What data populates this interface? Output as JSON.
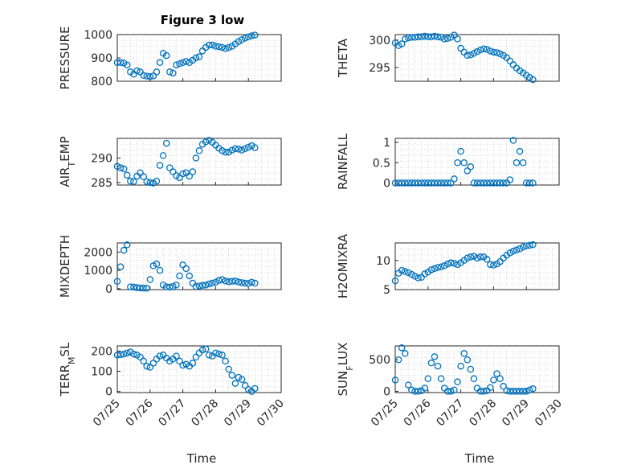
{
  "figure": {
    "title": "Figure 3 low",
    "marker_color": "#0072BD",
    "grid": "minor dotted",
    "x_axis_label": "Time"
  },
  "chart_data": [
    {
      "type": "scatter",
      "title": "Figure 3 low",
      "ylabel": "PRESSURE",
      "xlabel": "",
      "xlim": [
        "07/25",
        "07/30"
      ],
      "xticks": [
        "07/25",
        "07/26",
        "07/27",
        "07/28",
        "07/29",
        "07/30"
      ],
      "ylim": [
        800,
        1000
      ],
      "yticks": [
        "800",
        "900",
        "1000"
      ],
      "x": [
        0.0,
        0.1,
        0.2,
        0.3,
        0.4,
        0.5,
        0.6,
        0.7,
        0.8,
        0.9,
        1.0,
        1.1,
        1.2,
        1.3,
        1.4,
        1.5,
        1.6,
        1.7,
        1.8,
        1.9,
        2.0,
        2.1,
        2.2,
        2.3,
        2.4,
        2.5,
        2.6,
        2.7,
        2.8,
        2.9,
        3.0,
        3.1,
        3.2,
        3.3,
        3.4,
        3.5,
        3.6,
        3.7,
        3.8,
        3.9,
        4.0,
        4.1,
        4.2
      ],
      "y": [
        880,
        880,
        878,
        870,
        840,
        830,
        845,
        840,
        825,
        822,
        820,
        823,
        840,
        880,
        920,
        910,
        840,
        835,
        870,
        875,
        880,
        885,
        880,
        890,
        900,
        905,
        930,
        945,
        955,
        955,
        950,
        948,
        945,
        940,
        945,
        950,
        960,
        970,
        978,
        985,
        990,
        995,
        998
      ]
    },
    {
      "type": "scatter",
      "ylabel": "THETA",
      "xlabel": "",
      "xlim": [
        "07/25",
        "07/30"
      ],
      "xticks": [
        "07/25",
        "07/26",
        "07/27",
        "07/28",
        "07/29",
        "07/30"
      ],
      "ylim": [
        292.5,
        301
      ],
      "yticks": [
        "295",
        "300"
      ],
      "x": [
        0.0,
        0.1,
        0.2,
        0.3,
        0.4,
        0.5,
        0.6,
        0.7,
        0.8,
        0.9,
        1.0,
        1.1,
        1.2,
        1.3,
        1.4,
        1.5,
        1.6,
        1.7,
        1.8,
        1.9,
        2.0,
        2.1,
        2.2,
        2.3,
        2.4,
        2.5,
        2.6,
        2.7,
        2.8,
        2.9,
        3.0,
        3.1,
        3.2,
        3.3,
        3.4,
        3.5,
        3.6,
        3.7,
        3.8,
        3.9,
        4.0,
        4.1,
        4.2
      ],
      "y": [
        299.5,
        299,
        299.3,
        300.2,
        300.4,
        300.5,
        300.5,
        300.6,
        300.6,
        300.7,
        300.6,
        300.6,
        300.7,
        300.6,
        300.5,
        300.2,
        300.3,
        300.5,
        300.9,
        300.2,
        298.5,
        297.8,
        297.2,
        297.3,
        297.6,
        297.9,
        298.2,
        298.4,
        298.3,
        298.0,
        297.8,
        297.7,
        297.5,
        297.2,
        296.8,
        296.2,
        295.5,
        294.9,
        294.4,
        294.0,
        293.6,
        293.2,
        292.8
      ]
    },
    {
      "type": "scatter",
      "ylabel": "AIR_TEMP",
      "xlabel": "",
      "xlim": [
        "07/25",
        "07/30"
      ],
      "xticks": [
        "07/25",
        "07/26",
        "07/27",
        "07/28",
        "07/29",
        "07/30"
      ],
      "ylim": [
        284.5,
        294
      ],
      "yticks": [
        "285",
        "290"
      ],
      "x": [
        0.0,
        0.1,
        0.2,
        0.3,
        0.4,
        0.5,
        0.6,
        0.7,
        0.8,
        0.9,
        1.0,
        1.1,
        1.2,
        1.3,
        1.4,
        1.5,
        1.6,
        1.7,
        1.8,
        1.9,
        2.0,
        2.1,
        2.2,
        2.3,
        2.4,
        2.5,
        2.6,
        2.7,
        2.8,
        2.9,
        3.0,
        3.1,
        3.2,
        3.3,
        3.4,
        3.5,
        3.6,
        3.7,
        3.8,
        3.9,
        4.0,
        4.1,
        4.2
      ],
      "y": [
        288.3,
        288,
        287.8,
        286.5,
        285.3,
        285.2,
        286.3,
        287.0,
        286.2,
        285.2,
        285.0,
        284.9,
        285.3,
        288.5,
        290.5,
        293.0,
        288.0,
        287.2,
        286.4,
        286.0,
        286.8,
        287.0,
        286.3,
        287.2,
        290.0,
        291.5,
        292.8,
        293.3,
        293.6,
        293.2,
        292.6,
        292.0,
        291.5,
        291.2,
        291.2,
        291.6,
        291.9,
        291.8,
        291.6,
        291.9,
        292.2,
        292.5,
        292.1
      ]
    },
    {
      "type": "scatter",
      "ylabel": "RAINFALL",
      "xlabel": "",
      "xlim": [
        "07/25",
        "07/30"
      ],
      "xticks": [
        "07/25",
        "07/26",
        "07/27",
        "07/28",
        "07/29",
        "07/30"
      ],
      "ylim": [
        -0.05,
        1.1
      ],
      "yticks": [
        "0",
        "0.5",
        "1"
      ],
      "x": [
        0.0,
        0.1,
        0.2,
        0.3,
        0.4,
        0.5,
        0.6,
        0.7,
        0.8,
        0.9,
        1.0,
        1.1,
        1.2,
        1.3,
        1.4,
        1.5,
        1.6,
        1.7,
        1.8,
        1.9,
        2.0,
        2.1,
        2.2,
        2.3,
        2.4,
        2.5,
        2.6,
        2.7,
        2.8,
        2.9,
        3.0,
        3.1,
        3.2,
        3.3,
        3.4,
        3.5,
        3.6,
        3.7,
        3.8,
        3.9,
        4.0,
        4.1,
        4.2
      ],
      "y": [
        0,
        0,
        0,
        0,
        0,
        0,
        0,
        0,
        0,
        0,
        0,
        0,
        0,
        0,
        0,
        0,
        0,
        0,
        0.1,
        0.5,
        0.78,
        0.5,
        0.3,
        0.4,
        0,
        0,
        0,
        0,
        0,
        0,
        0,
        0,
        0,
        0,
        0,
        0.08,
        1.05,
        0.5,
        0.78,
        0.5,
        0,
        0,
        0
      ]
    },
    {
      "type": "scatter",
      "ylabel": "MIXDEPTH",
      "xlabel": "",
      "xlim": [
        "07/25",
        "07/30"
      ],
      "xticks": [
        "07/25",
        "07/26",
        "07/27",
        "07/28",
        "07/29",
        "07/30"
      ],
      "ylim": [
        -50,
        2500
      ],
      "yticks": [
        "0",
        "1000",
        "2000"
      ],
      "x": [
        0.0,
        0.1,
        0.2,
        0.3,
        0.4,
        0.5,
        0.6,
        0.7,
        0.8,
        0.9,
        1.0,
        1.1,
        1.2,
        1.3,
        1.4,
        1.5,
        1.6,
        1.7,
        1.8,
        1.9,
        2.0,
        2.1,
        2.2,
        2.3,
        2.4,
        2.5,
        2.6,
        2.7,
        2.8,
        2.9,
        3.0,
        3.1,
        3.2,
        3.3,
        3.4,
        3.5,
        3.6,
        3.7,
        3.8,
        3.9,
        4.0,
        4.1,
        4.2
      ],
      "y": [
        400,
        1200,
        2100,
        2400,
        100,
        80,
        60,
        40,
        30,
        20,
        500,
        1250,
        1350,
        1000,
        200,
        100,
        80,
        120,
        200,
        700,
        1300,
        1100,
        700,
        300,
        120,
        150,
        180,
        200,
        260,
        300,
        350,
        450,
        500,
        420,
        380,
        400,
        420,
        360,
        330,
        300,
        280,
        350,
        300
      ]
    },
    {
      "type": "scatter",
      "ylabel": "H2OMIXRA",
      "xlabel": "",
      "xlim": [
        "07/25",
        "07/30"
      ],
      "xticks": [
        "07/25",
        "07/26",
        "07/27",
        "07/28",
        "07/29",
        "07/30"
      ],
      "ylim": [
        5,
        13
      ],
      "yticks": [
        "5",
        "10"
      ],
      "x": [
        0.0,
        0.1,
        0.2,
        0.3,
        0.4,
        0.5,
        0.6,
        0.7,
        0.8,
        0.9,
        1.0,
        1.1,
        1.2,
        1.3,
        1.4,
        1.5,
        1.6,
        1.7,
        1.8,
        1.9,
        2.0,
        2.1,
        2.2,
        2.3,
        2.4,
        2.5,
        2.6,
        2.7,
        2.8,
        2.9,
        3.0,
        3.1,
        3.2,
        3.3,
        3.4,
        3.5,
        3.6,
        3.7,
        3.8,
        3.9,
        4.0,
        4.1,
        4.2
      ],
      "y": [
        6.5,
        7.8,
        8.3,
        8.1,
        7.9,
        7.6,
        7.3,
        7.0,
        7.1,
        7.7,
        8.0,
        8.4,
        8.6,
        8.8,
        8.9,
        9.1,
        9.4,
        9.6,
        9.5,
        9.3,
        9.6,
        10.0,
        10.4,
        10.6,
        10.7,
        10.4,
        10.6,
        10.6,
        10.2,
        9.3,
        9.2,
        9.4,
        9.8,
        10.4,
        10.9,
        11.3,
        11.6,
        11.8,
        12.0,
        12.3,
        12.5,
        12.6,
        12.7
      ]
    },
    {
      "type": "scatter",
      "ylabel": "TERR_MSL",
      "xlabel": "Time",
      "xlim": [
        "07/25",
        "07/30"
      ],
      "xticks": [
        "07/25",
        "07/26",
        "07/27",
        "07/28",
        "07/29",
        "07/30"
      ],
      "ylim": [
        -5,
        225
      ],
      "yticks": [
        "0",
        "100",
        "200"
      ],
      "x": [
        0.0,
        0.1,
        0.2,
        0.3,
        0.4,
        0.5,
        0.6,
        0.7,
        0.8,
        0.9,
        1.0,
        1.1,
        1.2,
        1.3,
        1.4,
        1.5,
        1.6,
        1.7,
        1.8,
        1.9,
        2.0,
        2.1,
        2.2,
        2.3,
        2.4,
        2.5,
        2.6,
        2.7,
        2.8,
        2.9,
        3.0,
        3.1,
        3.2,
        3.3,
        3.4,
        3.5,
        3.6,
        3.7,
        3.8,
        3.9,
        4.0,
        4.1,
        4.2
      ],
      "y": [
        180,
        182,
        185,
        190,
        195,
        185,
        180,
        170,
        150,
        125,
        120,
        140,
        160,
        175,
        180,
        165,
        150,
        160,
        175,
        150,
        130,
        135,
        125,
        140,
        170,
        190,
        205,
        210,
        180,
        175,
        190,
        185,
        180,
        150,
        110,
        80,
        40,
        70,
        60,
        30,
        10,
        0,
        15
      ]
    },
    {
      "type": "scatter",
      "ylabel": "SUN_FLUX",
      "xlabel": "Time",
      "xlim": [
        "07/25",
        "07/30"
      ],
      "xticks": [
        "07/25",
        "07/26",
        "07/27",
        "07/28",
        "07/29",
        "07/30"
      ],
      "ylim": [
        -20,
        720
      ],
      "yticks": [
        "0",
        "500"
      ],
      "x": [
        0.0,
        0.1,
        0.2,
        0.3,
        0.4,
        0.5,
        0.6,
        0.7,
        0.8,
        0.9,
        1.0,
        1.1,
        1.2,
        1.3,
        1.4,
        1.5,
        1.6,
        1.7,
        1.8,
        1.9,
        2.0,
        2.1,
        2.2,
        2.3,
        2.4,
        2.5,
        2.6,
        2.7,
        2.8,
        2.9,
        3.0,
        3.1,
        3.2,
        3.3,
        3.4,
        3.5,
        3.6,
        3.7,
        3.8,
        3.9,
        4.0,
        4.1,
        4.2
      ],
      "y": [
        180,
        500,
        690,
        600,
        100,
        20,
        0,
        0,
        10,
        50,
        200,
        450,
        550,
        400,
        200,
        50,
        0,
        0,
        20,
        150,
        400,
        600,
        500,
        350,
        200,
        50,
        0,
        0,
        10,
        60,
        180,
        280,
        200,
        80,
        10,
        0,
        0,
        0,
        0,
        0,
        0,
        20,
        40
      ]
    }
  ]
}
